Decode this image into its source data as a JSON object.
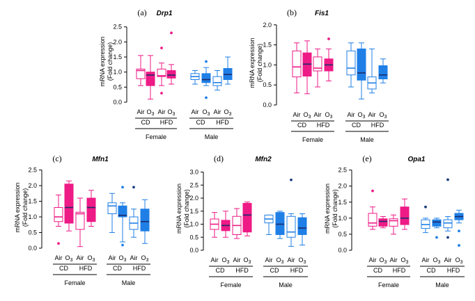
{
  "colors": {
    "female": "#ee1a86",
    "male": "#1f7fe6",
    "female_fill": "#ee1a86",
    "male_fill": "#1f7fe6",
    "axis": "#000000"
  },
  "chart_data": [
    {
      "type": "box",
      "panel_label": "(a)",
      "title": "Drp1",
      "ylabel_line1": "mRNA expression",
      "ylabel_line2": "(Fold change)",
      "ylim": [
        0,
        2.7
      ],
      "yticks": [
        0.0,
        0.5,
        1.0,
        1.5,
        2.0,
        2.5
      ],
      "groups": [
        "Air",
        "O3",
        "Air",
        "O3",
        "Air",
        "O3",
        "Air",
        "O3"
      ],
      "diet_labels": [
        "CD",
        "HFD",
        "CD",
        "HFD"
      ],
      "sex_labels": [
        "Female",
        "Male"
      ],
      "boxes": [
        {
          "sex": "female",
          "filled": false,
          "whislo": 0.55,
          "q1": 0.78,
          "med": 1.05,
          "q3": 1.1,
          "whishi": 1.55,
          "fliers": []
        },
        {
          "sex": "female",
          "filled": true,
          "whislo": 0.1,
          "q1": 0.55,
          "med": 0.9,
          "q3": 1.0,
          "whishi": 1.55,
          "fliers": []
        },
        {
          "sex": "female",
          "filled": false,
          "whislo": 0.55,
          "q1": 0.85,
          "med": 0.88,
          "q3": 1.1,
          "whishi": 1.3,
          "fliers": [
            1.8,
            0.3
          ]
        },
        {
          "sex": "female",
          "filled": true,
          "whislo": 0.6,
          "q1": 0.8,
          "med": 0.9,
          "q3": 1.05,
          "whishi": 1.25,
          "fliers": [
            2.3
          ]
        },
        {
          "sex": "male",
          "filled": false,
          "whislo": 0.6,
          "q1": 0.75,
          "med": 0.85,
          "q3": 0.95,
          "whishi": 1.05,
          "fliers": []
        },
        {
          "sex": "male",
          "filled": true,
          "whislo": 0.55,
          "q1": 0.65,
          "med": 0.75,
          "q3": 0.95,
          "whishi": 1.15,
          "fliers": [
            1.35,
            0.15
          ]
        },
        {
          "sex": "male",
          "filled": false,
          "whislo": 0.4,
          "q1": 0.55,
          "med": 0.65,
          "q3": 0.85,
          "whishi": 1.05,
          "fliers": []
        },
        {
          "sex": "male",
          "filled": true,
          "whislo": 0.6,
          "q1": 0.75,
          "med": 0.92,
          "q3": 1.12,
          "whishi": 1.5,
          "fliers": []
        }
      ]
    },
    {
      "type": "box",
      "panel_label": "(b)",
      "title": "Fis1",
      "ylabel_line1": "mRNA expression",
      "ylabel_line2": "(Fold change)",
      "ylim": [
        0,
        2.1
      ],
      "yticks": [
        0.0,
        0.5,
        1.0,
        1.5,
        2.0
      ],
      "groups": [
        "Air",
        "O3",
        "Air",
        "O3",
        "Air",
        "O3",
        "Air",
        "O3"
      ],
      "diet_labels": [
        "CD",
        "HFD",
        "CD",
        "HFD"
      ],
      "sex_labels": [
        "Female",
        "Male"
      ],
      "boxes": [
        {
          "sex": "female",
          "filled": false,
          "whislo": 0.3,
          "q1": 0.7,
          "med": 0.95,
          "q3": 1.35,
          "whishi": 1.55,
          "fliers": []
        },
        {
          "sex": "female",
          "filled": true,
          "whislo": 0.28,
          "q1": 0.72,
          "med": 1.02,
          "q3": 1.3,
          "whishi": 1.6,
          "fliers": []
        },
        {
          "sex": "female",
          "filled": false,
          "whislo": 0.45,
          "q1": 0.85,
          "med": 0.92,
          "q3": 1.2,
          "whishi": 1.4,
          "fliers": []
        },
        {
          "sex": "female",
          "filled": true,
          "whislo": 0.6,
          "q1": 0.85,
          "med": 1.0,
          "q3": 1.15,
          "whishi": 1.4,
          "fliers": [
            1.65
          ]
        },
        {
          "sex": "male",
          "filled": false,
          "whislo": 0.45,
          "q1": 0.75,
          "med": 0.92,
          "q3": 1.35,
          "whishi": 1.55,
          "fliers": []
        },
        {
          "sex": "male",
          "filled": true,
          "whislo": 0.15,
          "q1": 0.62,
          "med": 0.8,
          "q3": 1.4,
          "whishi": 1.55,
          "fliers": []
        },
        {
          "sex": "male",
          "filled": false,
          "whislo": 0.3,
          "q1": 0.4,
          "med": 0.55,
          "q3": 0.7,
          "whishi": 1.4,
          "fliers": []
        },
        {
          "sex": "male",
          "filled": true,
          "whislo": 0.55,
          "q1": 0.65,
          "med": 0.75,
          "q3": 0.98,
          "whishi": 1.15,
          "fliers": []
        }
      ]
    },
    {
      "type": "box",
      "panel_label": "(c)",
      "title": "Mfn1",
      "ylabel_line1": "mRNA expression",
      "ylabel_line2": "(Fold change)",
      "ylim": [
        0,
        2.6
      ],
      "yticks": [
        0.0,
        0.5,
        1.0,
        1.5,
        2.0,
        2.5
      ],
      "groups": [
        "Air",
        "O3",
        "Air",
        "O3",
        "Air",
        "O3",
        "Air",
        "O3"
      ],
      "diet_labels": [
        "CD",
        "HFD",
        "CD",
        "HFD"
      ],
      "sex_labels": [
        "Female",
        "Male"
      ],
      "boxes": [
        {
          "sex": "female",
          "filled": false,
          "whislo": 0.7,
          "q1": 0.85,
          "med": 1.0,
          "q3": 1.3,
          "whishi": 1.7,
          "fliers": [
            0.15
          ]
        },
        {
          "sex": "female",
          "filled": true,
          "whislo": 0.55,
          "q1": 0.8,
          "med": 1.3,
          "q3": 2.05,
          "whishi": 2.15,
          "fliers": []
        },
        {
          "sex": "female",
          "filled": false,
          "whislo": 0.05,
          "q1": 0.6,
          "med": 1.1,
          "q3": 1.15,
          "whishi": 1.6,
          "fliers": []
        },
        {
          "sex": "female",
          "filled": true,
          "whislo": 0.7,
          "q1": 0.85,
          "med": 1.3,
          "q3": 1.6,
          "whishi": 1.85,
          "fliers": []
        },
        {
          "sex": "male",
          "filled": false,
          "whislo": 0.5,
          "q1": 1.1,
          "med": 1.35,
          "q3": 1.45,
          "whishi": 1.75,
          "fliers": []
        },
        {
          "sex": "male",
          "filled": true,
          "whislo": 0.2,
          "q1": 1.0,
          "med": 1.05,
          "q3": 1.35,
          "whishi": 1.45,
          "fliers": [
            1.95,
            0.1
          ]
        },
        {
          "sex": "male",
          "filled": false,
          "whislo": 0.35,
          "q1": 0.6,
          "med": 0.8,
          "q3": 1.0,
          "whishi": 1.25,
          "fliers": [
            1.95
          ]
        },
        {
          "sex": "male",
          "filled": true,
          "whislo": 0.15,
          "q1": 0.55,
          "med": 0.85,
          "q3": 1.25,
          "whishi": 1.55,
          "fliers": []
        }
      ]
    },
    {
      "type": "box",
      "panel_label": "(d)",
      "title": "Mfn2",
      "ylabel_line1": "mRNA expression",
      "ylabel_line2": "(Fold change)",
      "ylim": [
        0,
        3.2
      ],
      "yticks": [
        0.0,
        0.5,
        1.0,
        1.5,
        2.0,
        2.5,
        3.0
      ],
      "groups": [
        "Air",
        "O3",
        "Air",
        "O3",
        "Air",
        "O3",
        "Air",
        "O3"
      ],
      "diet_labels": [
        "CD",
        "HFD",
        "CD",
        "HFD"
      ],
      "sex_labels": [
        "Female",
        "Male"
      ],
      "boxes": [
        {
          "sex": "female",
          "filled": false,
          "whislo": 0.5,
          "q1": 0.8,
          "med": 1.0,
          "q3": 1.2,
          "whishi": 1.45,
          "fliers": []
        },
        {
          "sex": "female",
          "filled": true,
          "whislo": 0.5,
          "q1": 0.75,
          "med": 0.95,
          "q3": 1.15,
          "whishi": 1.5,
          "fliers": []
        },
        {
          "sex": "female",
          "filled": false,
          "whislo": 0.45,
          "q1": 0.6,
          "med": 0.95,
          "q3": 1.3,
          "whishi": 1.6,
          "fliers": []
        },
        {
          "sex": "female",
          "filled": true,
          "whislo": 0.55,
          "q1": 0.7,
          "med": 1.35,
          "q3": 1.8,
          "whishi": 1.85,
          "fliers": []
        },
        {
          "sex": "male",
          "filled": false,
          "whislo": 0.6,
          "q1": 1.05,
          "med": 1.2,
          "q3": 1.35,
          "whishi": 1.35,
          "fliers": []
        },
        {
          "sex": "male",
          "filled": true,
          "whislo": 0.45,
          "q1": 0.6,
          "med": 1.0,
          "q3": 1.45,
          "whishi": 1.5,
          "fliers": []
        },
        {
          "sex": "male",
          "filled": false,
          "whislo": 0.15,
          "q1": 0.5,
          "med": 0.7,
          "q3": 1.3,
          "whishi": 1.4,
          "fliers": [
            2.7
          ]
        },
        {
          "sex": "male",
          "filled": true,
          "whislo": 0.2,
          "q1": 0.6,
          "med": 0.85,
          "q3": 1.25,
          "whishi": 1.4,
          "fliers": []
        }
      ]
    },
    {
      "type": "box",
      "panel_label": "(e)",
      "title": "Opa1",
      "ylabel_line1": "mRNA expression",
      "ylabel_line2": "(Fold change)",
      "ylim": [
        0,
        2.6
      ],
      "yticks": [
        0.0,
        0.5,
        1.0,
        1.5,
        2.0,
        2.5
      ],
      "groups": [
        "Air",
        "O3",
        "Air",
        "O3",
        "Air",
        "O3",
        "Air",
        "O3"
      ],
      "diet_labels": [
        "CD",
        "HFD",
        "CD",
        "HFD"
      ],
      "sex_labels": [
        "Female",
        "Male"
      ],
      "boxes": [
        {
          "sex": "female",
          "filled": false,
          "whislo": 0.65,
          "q1": 0.75,
          "med": 0.85,
          "q3": 1.15,
          "whishi": 1.35,
          "fliers": [
            1.85
          ]
        },
        {
          "sex": "female",
          "filled": true,
          "whislo": 0.7,
          "q1": 0.75,
          "med": 0.9,
          "q3": 0.98,
          "whishi": 1.05,
          "fliers": []
        },
        {
          "sex": "female",
          "filled": false,
          "whislo": 0.5,
          "q1": 0.75,
          "med": 0.92,
          "q3": 0.98,
          "whishi": 1.1,
          "fliers": []
        },
        {
          "sex": "female",
          "filled": true,
          "whislo": 0.65,
          "q1": 0.8,
          "med": 1.0,
          "q3": 1.35,
          "whishi": 1.6,
          "fliers": []
        },
        {
          "sex": "male",
          "filled": false,
          "whislo": 0.55,
          "q1": 0.68,
          "med": 0.8,
          "q3": 0.95,
          "whishi": 1.0,
          "fliers": [
            1.35
          ]
        },
        {
          "sex": "male",
          "filled": true,
          "whislo": 0.7,
          "q1": 0.75,
          "med": 0.88,
          "q3": 0.95,
          "whishi": 1.0,
          "fliers": [
            0.4
          ]
        },
        {
          "sex": "male",
          "filled": false,
          "whislo": 0.6,
          "q1": 0.7,
          "med": 0.85,
          "q3": 0.95,
          "whishi": 1.05,
          "fliers": [
            2.2,
            0.4
          ]
        },
        {
          "sex": "male",
          "filled": true,
          "whislo": 0.85,
          "q1": 0.95,
          "med": 1.05,
          "q3": 1.15,
          "whishi": 1.25,
          "fliers": [
            0.6,
            0.15
          ]
        }
      ]
    }
  ]
}
